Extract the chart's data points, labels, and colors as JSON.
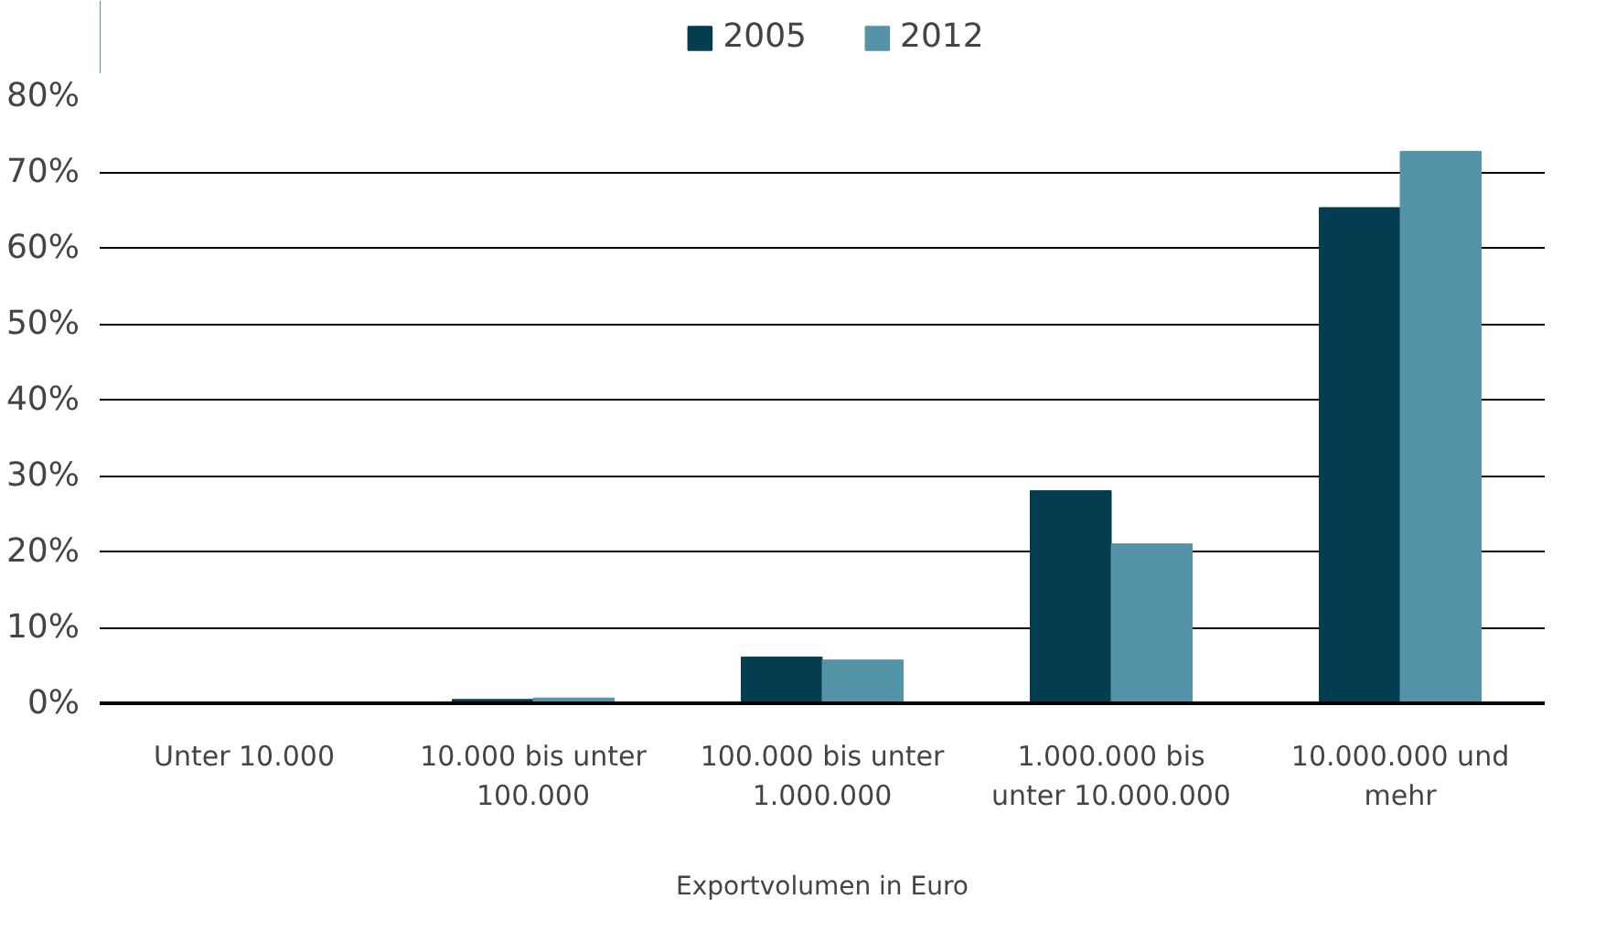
{
  "chart_data": {
    "type": "bar",
    "xlabel": "Exportvolumen in Euro",
    "categories": [
      "Unter 10.000",
      "10.000 bis unter 100.000",
      "100.000 bis unter 1.000.000",
      "1.000.000 bis unter 10.000.000",
      "10.000.000 und mehr"
    ],
    "series": [
      {
        "name": "2005",
        "color": "#043c50",
        "values": [
          0,
          0.5,
          6.1,
          28,
          65.3
        ]
      },
      {
        "name": "2012",
        "color": "#5593a8",
        "values": [
          0,
          0.7,
          5.7,
          21,
          72.7
        ]
      }
    ],
    "ylim": [
      0,
      80
    ],
    "yticks": [
      {
        "value": 0,
        "label": "0%"
      },
      {
        "value": 10,
        "label": "10%"
      },
      {
        "value": 20,
        "label": "20%"
      },
      {
        "value": 30,
        "label": "30%"
      },
      {
        "value": 40,
        "label": "40%"
      },
      {
        "value": 50,
        "label": "50%"
      },
      {
        "value": 60,
        "label": "60%"
      },
      {
        "value": 70,
        "label": "70%"
      },
      {
        "value": 80,
        "label": "80%"
      }
    ],
    "grid": "y",
    "legend": "top"
  }
}
